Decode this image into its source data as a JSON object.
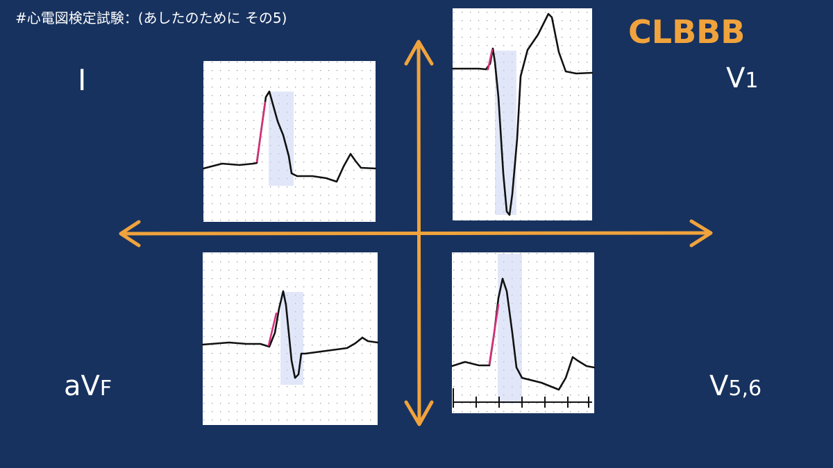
{
  "header": {
    "title": "#心電図検定試験：(あしたのために その5)",
    "badge": "CLBBB"
  },
  "leads": {
    "lead_i": {
      "main": "I"
    },
    "lead_v1": {
      "main": "V",
      "sub": "1"
    },
    "lead_avf": {
      "main": "aV",
      "sub": "F"
    },
    "lead_v56": {
      "main": "V",
      "sub": "5,6"
    }
  }
}
